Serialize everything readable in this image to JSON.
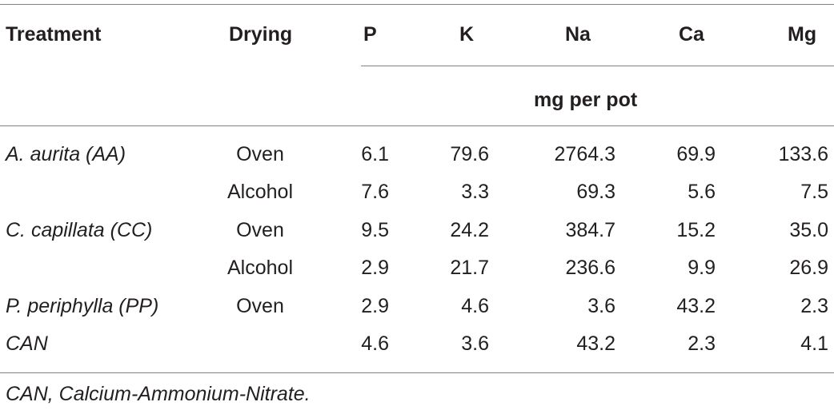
{
  "table": {
    "headers": {
      "treatment": "Treatment",
      "drying": "Drying",
      "p": "P",
      "k": "K",
      "na": "Na",
      "ca": "Ca",
      "mg": "Mg"
    },
    "units": "mg per pot",
    "rows": [
      {
        "treatment": "A. aurita (AA)",
        "drying": "Oven",
        "p": "6.1",
        "k": "79.6",
        "na": "2764.3",
        "ca": "69.9",
        "mg": "133.6"
      },
      {
        "treatment": "",
        "drying": "Alcohol",
        "p": "7.6",
        "k": "3.3",
        "na": "69.3",
        "ca": "5.6",
        "mg": "7.5"
      },
      {
        "treatment": "C. capillata (CC)",
        "drying": "Oven",
        "p": "9.5",
        "k": "24.2",
        "na": "384.7",
        "ca": "15.2",
        "mg": "35.0"
      },
      {
        "treatment": "",
        "drying": "Alcohol",
        "p": "2.9",
        "k": "21.7",
        "na": "236.6",
        "ca": "9.9",
        "mg": "26.9"
      },
      {
        "treatment": "P. periphylla (PP)",
        "drying": "Oven",
        "p": "2.9",
        "k": "4.6",
        "na": "3.6",
        "ca": "43.2",
        "mg": "2.3"
      },
      {
        "treatment": "CAN",
        "drying": "",
        "p": "4.6",
        "k": "3.6",
        "na": "43.2",
        "ca": "2.3",
        "mg": "4.1"
      }
    ],
    "footnote": "CAN, Calcium-Ammonium-Nitrate."
  },
  "colors": {
    "text": "#231f20",
    "rule": "#808080",
    "background": "#ffffff"
  }
}
